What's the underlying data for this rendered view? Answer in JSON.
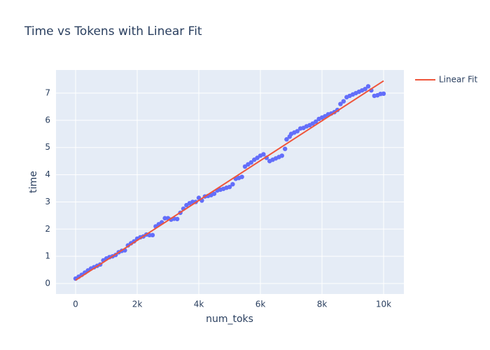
{
  "chart_data": {
    "type": "scatter",
    "title": "Time vs Tokens with Linear Fit",
    "x_label": "num_toks",
    "y_label": "time",
    "xlim": [
      -636,
      10659
    ],
    "ylim": [
      -0.386,
      7.85
    ],
    "xticks": [
      0,
      {
        "value": 2000,
        "label": "2k"
      },
      {
        "value": 4000,
        "label": "4k"
      },
      {
        "value": 6000,
        "label": "6k"
      },
      {
        "value": 8000,
        "label": "8k"
      },
      {
        "value": 10000,
        "label": "10k"
      }
    ],
    "yticks": [
      0,
      1,
      2,
      3,
      4,
      5,
      6,
      7
    ],
    "grid": true,
    "legend": "top-right-outside",
    "series": [
      {
        "color": "#636efa",
        "mode": "markers",
        "x": [
          0,
          100,
          200,
          300,
          400,
          500,
          600,
          700,
          800,
          900,
          1000,
          1100,
          1200,
          1300,
          1400,
          1500,
          1600,
          1700,
          1800,
          1900,
          2000,
          2100,
          2200,
          2300,
          2400,
          2500,
          2600,
          2700,
          2800,
          2900,
          3000,
          3100,
          3200,
          3300,
          3400,
          3500,
          3600,
          3700,
          3800,
          3900,
          4000,
          4100,
          4200,
          4300,
          4400,
          4500,
          4600,
          4700,
          4800,
          4900,
          5000,
          5100,
          5200,
          5300,
          5400,
          5500,
          5600,
          5700,
          5800,
          5900,
          6000,
          6100,
          6200,
          6300,
          6400,
          6500,
          6600,
          6700,
          6800,
          6850,
          6950,
          7000,
          7100,
          7200,
          7300,
          7400,
          7500,
          7600,
          7700,
          7800,
          7900,
          8000,
          8100,
          8200,
          8300,
          8400,
          8500,
          8600,
          8700,
          8800,
          8900,
          9000,
          9100,
          9200,
          9300,
          9400,
          9500,
          9600,
          9700,
          9800,
          9900,
          10000
        ],
        "values": [
          0.18,
          0.25,
          0.32,
          0.4,
          0.48,
          0.55,
          0.6,
          0.65,
          0.7,
          0.85,
          0.92,
          0.97,
          1.0,
          1.05,
          1.15,
          1.2,
          1.22,
          1.4,
          1.48,
          1.55,
          1.65,
          1.7,
          1.73,
          1.8,
          1.78,
          1.78,
          2.1,
          2.18,
          2.25,
          2.4,
          2.4,
          2.35,
          2.38,
          2.37,
          2.6,
          2.75,
          2.88,
          2.95,
          3.0,
          3.0,
          3.15,
          3.05,
          3.2,
          3.22,
          3.25,
          3.3,
          3.42,
          3.45,
          3.48,
          3.52,
          3.55,
          3.65,
          3.85,
          3.88,
          3.92,
          4.3,
          4.38,
          4.45,
          4.55,
          4.62,
          4.7,
          4.75,
          4.62,
          4.5,
          4.55,
          4.6,
          4.65,
          4.7,
          4.95,
          5.3,
          5.4,
          5.5,
          5.55,
          5.6,
          5.7,
          5.72,
          5.78,
          5.82,
          5.88,
          5.95,
          6.05,
          6.1,
          6.15,
          6.22,
          6.25,
          6.3,
          6.38,
          6.6,
          6.7,
          6.85,
          6.9,
          6.95,
          7.0,
          7.05,
          7.1,
          7.15,
          7.25,
          7.1,
          6.9,
          6.92,
          6.97,
          6.98
        ]
      },
      {
        "name": "Linear Fit",
        "color": "#ef553b",
        "mode": "lines",
        "x": [
          0,
          10000
        ],
        "values": [
          0.12,
          7.45
        ]
      }
    ]
  }
}
